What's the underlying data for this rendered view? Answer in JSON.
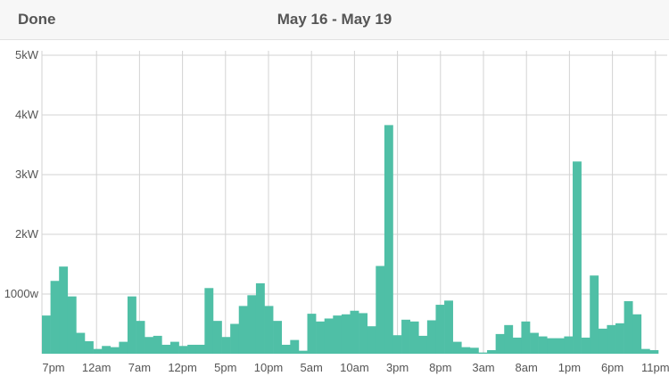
{
  "header": {
    "done_label": "Done",
    "title": "May 16 - May 19"
  },
  "colors": {
    "bar": "#4fbfa6",
    "grid": "#d3d3d3",
    "header_bg": "#f7f7f7",
    "text": "#555555"
  },
  "chart_data": {
    "type": "bar",
    "title": "",
    "xlabel": "",
    "ylabel": "",
    "unit": "W",
    "ylim": [
      0,
      5000
    ],
    "grid": true,
    "y_ticks": [
      {
        "value": 1000,
        "label": "1000w"
      },
      {
        "value": 2000,
        "label": "2kW"
      },
      {
        "value": 3000,
        "label": "3kW"
      },
      {
        "value": 4000,
        "label": "4kW"
      },
      {
        "value": 5000,
        "label": "5kW"
      }
    ],
    "x_tick_labels": [
      "7pm",
      "12am",
      "7am",
      "12pm",
      "5pm",
      "10pm",
      "5am",
      "10am",
      "3pm",
      "8pm",
      "3am",
      "8am",
      "1pm",
      "6pm",
      "11pm"
    ],
    "series": [
      {
        "values": [
          640,
          1220,
          1460,
          960,
          350,
          210,
          80,
          130,
          110,
          200,
          960,
          550,
          280,
          300,
          150,
          200,
          130,
          150,
          150,
          1100,
          550,
          280,
          500,
          800,
          980,
          1180,
          800,
          550,
          150,
          230,
          50,
          670,
          540,
          590,
          640,
          660,
          720,
          680,
          460,
          1470,
          3830,
          310,
          570,
          540,
          300,
          560,
          820,
          890,
          200,
          110,
          100,
          20,
          60,
          330,
          480,
          270,
          540,
          350,
          290,
          260,
          260,
          290,
          3220,
          270,
          1310,
          420,
          480,
          510,
          880,
          660,
          80,
          60
        ]
      }
    ]
  }
}
